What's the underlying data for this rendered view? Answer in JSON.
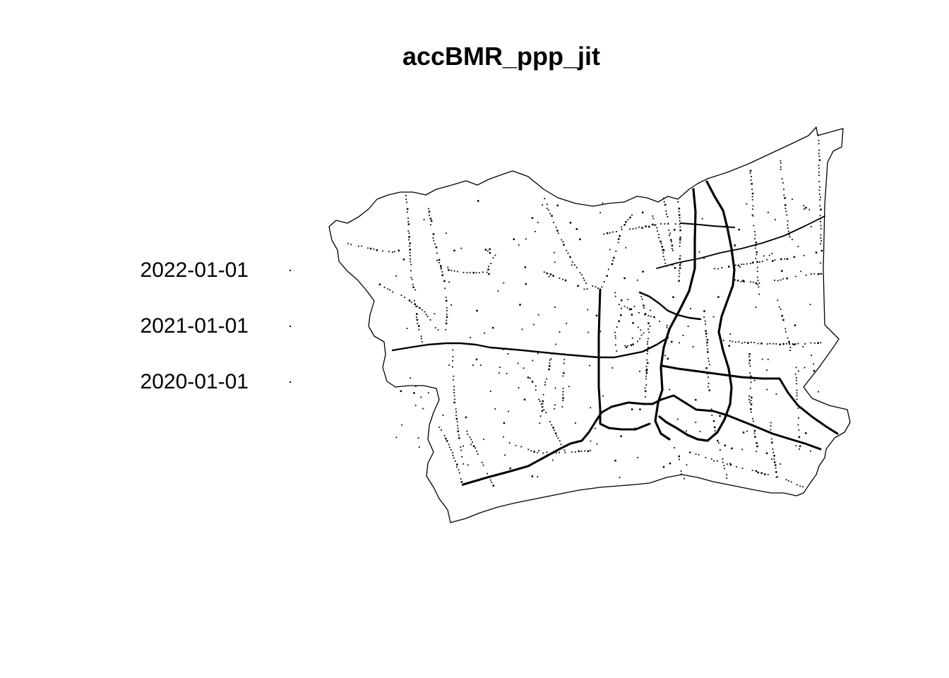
{
  "title": "accBMR_ppp_jit",
  "legend": {
    "entries": [
      {
        "label": "2022-01-01"
      },
      {
        "label": "2021-01-01"
      },
      {
        "label": "2020-01-01"
      }
    ]
  },
  "colors": {
    "background": "#ffffff",
    "ink": "#000000"
  },
  "map": {
    "type": "point pattern plot (spatstat ppp)",
    "window": "Bangkok Metropolitan Region boundary",
    "marks": "date",
    "mark_symbol": "small dot"
  }
}
